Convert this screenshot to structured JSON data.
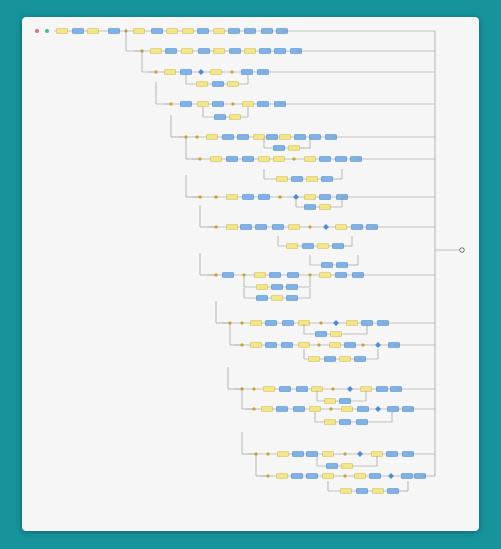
{
  "diagram": {
    "kind": "workflow-graph",
    "palette": {
      "background": "#17939b",
      "canvas": "#f6f6f6",
      "activity": "#f2e58a",
      "service": "#7fb3e8",
      "service_dark": "#5e93cf",
      "junction": "#c9a62a",
      "decision": "#4d8dd6",
      "start": "#e07070",
      "start_mid": "#46c08c",
      "connector": "#8e8e8e"
    },
    "node_types": [
      "start-icon",
      "activity-box",
      "service-box",
      "junction-dot",
      "decision-diamond",
      "end-icon"
    ]
  }
}
